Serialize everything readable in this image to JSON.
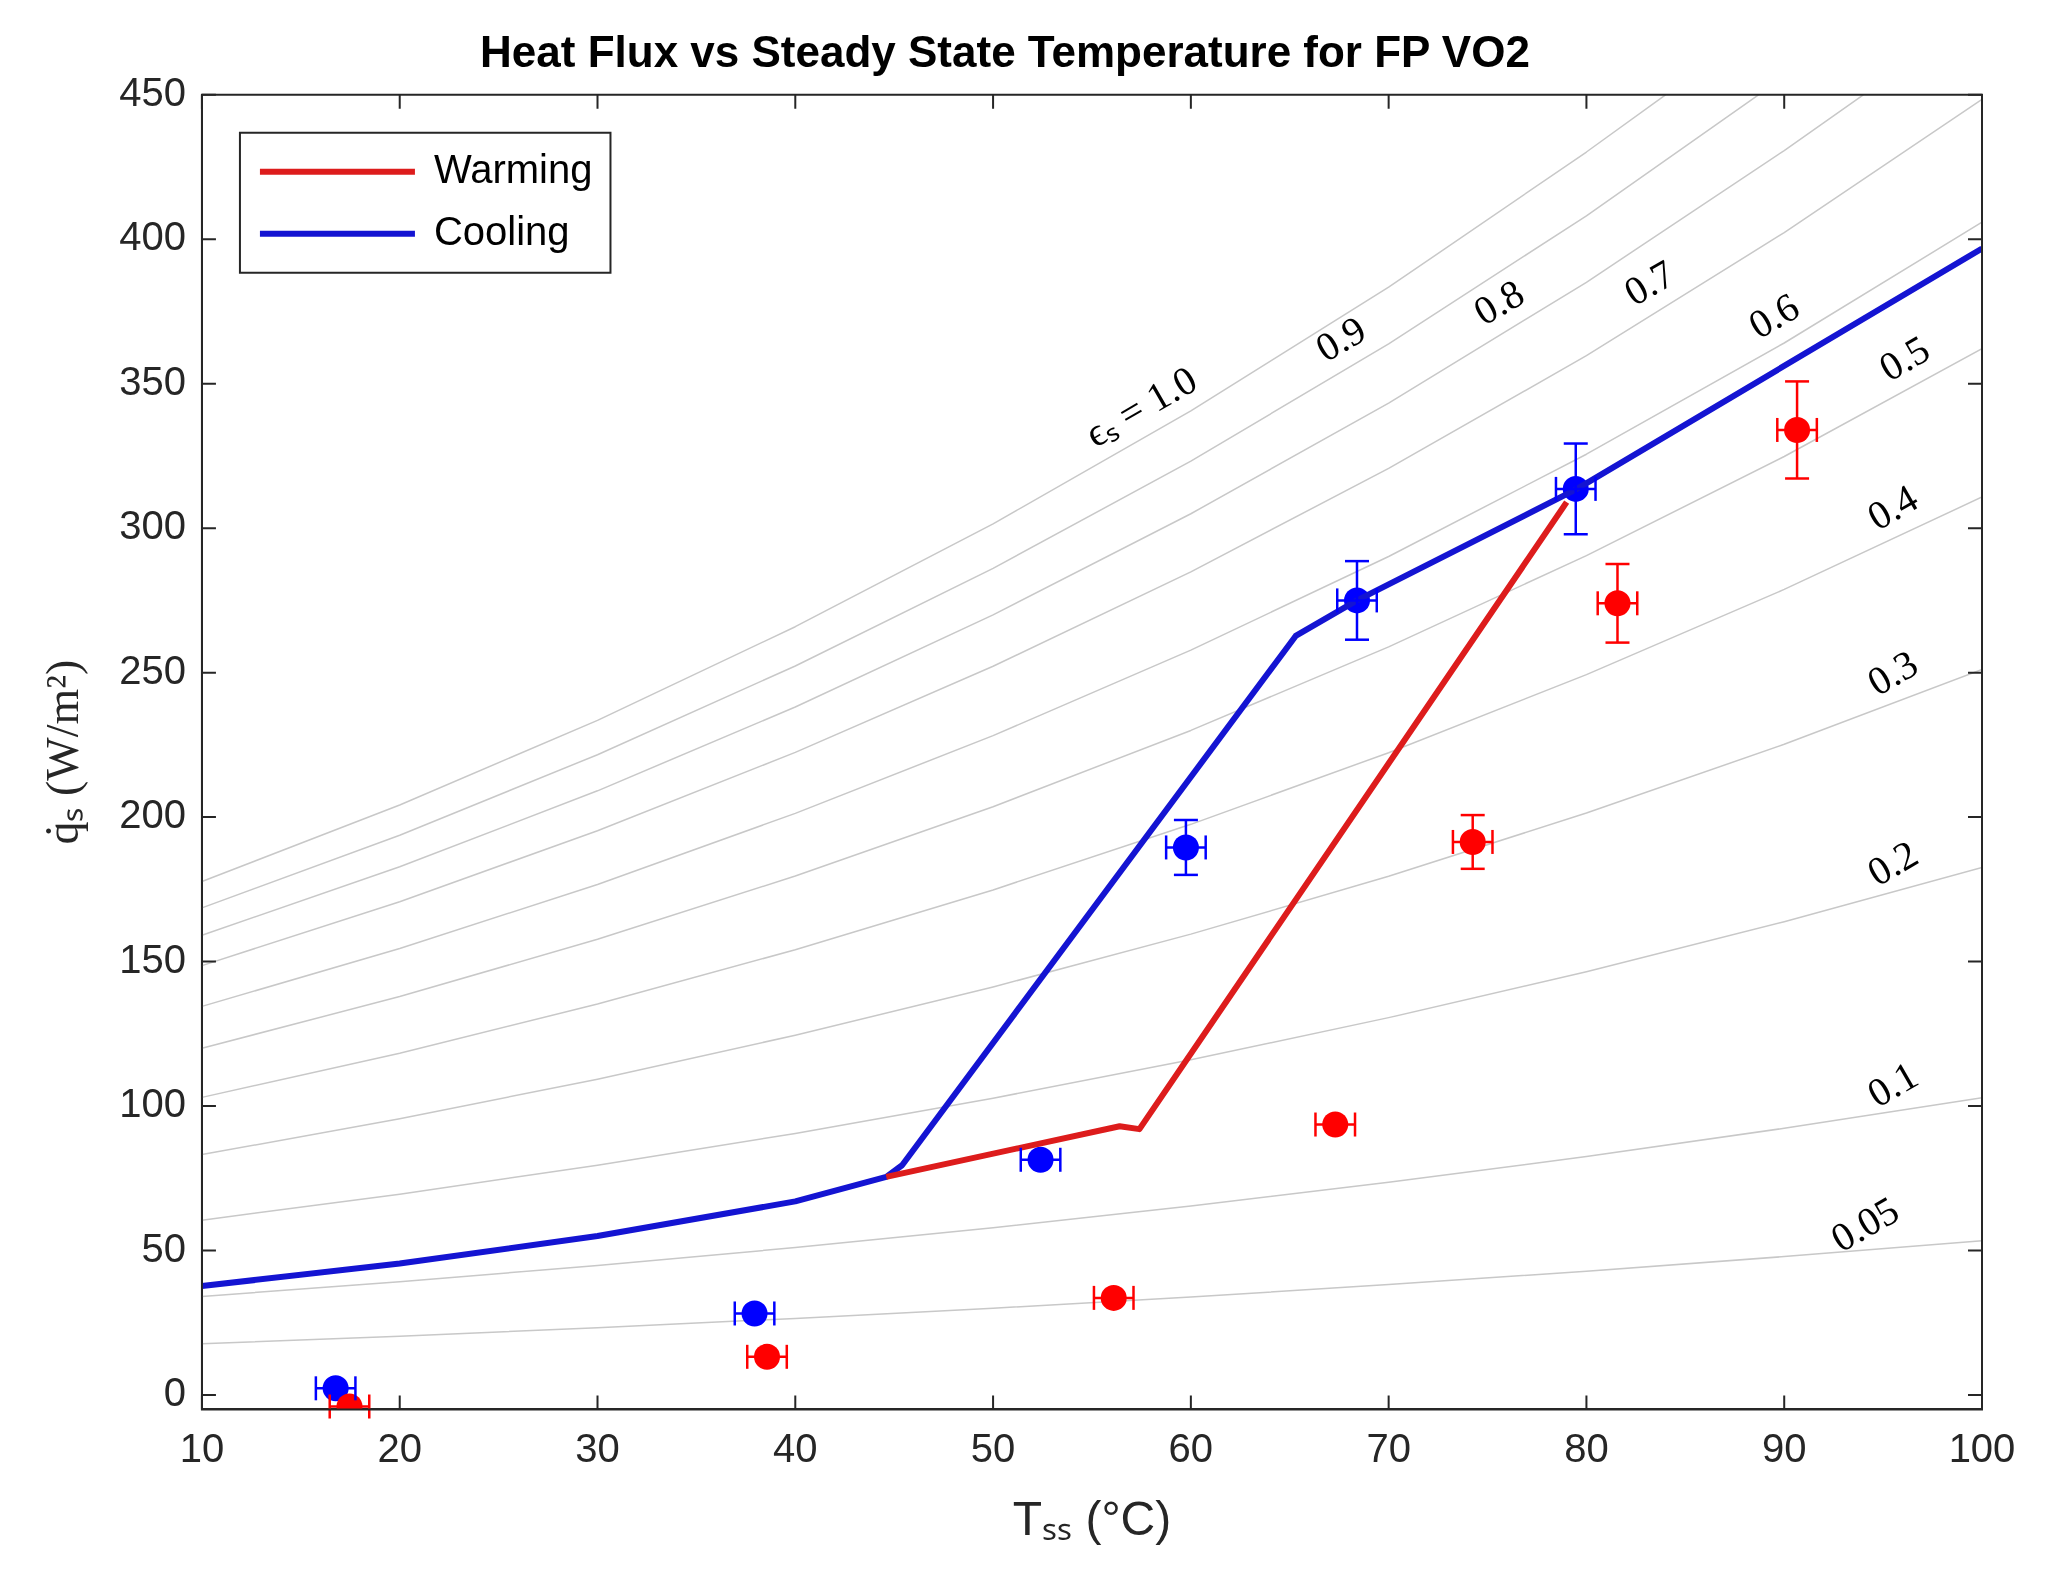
{
  "chart_data": {
    "type": "line",
    "title": "Heat Flux vs Steady State Temperature for FP VO2",
    "xlabel": "Tₛₛ (°C)",
    "ylabel": "q̇ₛ (W/m²)",
    "xlim": [
      10,
      100
    ],
    "ylim": [
      -5,
      450
    ],
    "xticks": [
      10,
      20,
      30,
      40,
      50,
      60,
      70,
      80,
      90,
      100
    ],
    "yticks": [
      0,
      50,
      100,
      150,
      200,
      250,
      300,
      350,
      400,
      450
    ],
    "grid": false,
    "legend": "top left",
    "annotations": [
      {
        "text": "ϵₛ = 1.0",
        "x": 58.2,
        "y": 333.5
      },
      {
        "text": "0.9",
        "x": 68.3,
        "y": 356.9
      },
      {
        "text": "0.8",
        "x": 76.3,
        "y": 369.6
      },
      {
        "text": "0.7",
        "x": 83.9,
        "y": 376.3
      },
      {
        "text": "0.6",
        "x": 90.2,
        "y": 364.9
      },
      {
        "text": "0.5",
        "x": 96.8,
        "y": 350.2
      },
      {
        "text": "0.4",
        "x": 96.2,
        "y": 298.6
      },
      {
        "text": "0.3",
        "x": 96.2,
        "y": 241.3
      },
      {
        "text": "0.2",
        "x": 96.2,
        "y": 175.5
      },
      {
        "text": "0.1",
        "x": 96.2,
        "y": 98.9
      },
      {
        "text": "0.05",
        "x": 94.8,
        "y": 50.5
      }
    ],
    "series": [
      {
        "color": "#c8c8c8",
        "x": [
          10,
          20,
          30,
          40,
          50,
          60,
          70,
          80,
          84
        ],
        "values": [
          177.7,
          204.2,
          233.5,
          265.9,
          301.5,
          340.6,
          383.4,
          430.2,
          450
        ]
      },
      {
        "color": "#c8c8c8",
        "x": [
          10,
          20,
          30,
          40,
          50,
          60,
          70,
          80,
          88.7
        ],
        "values": [
          168.6,
          193.7,
          221.6,
          252.3,
          286.1,
          323.2,
          363.8,
          408.1,
          450
        ]
      },
      {
        "color": "#c8c8c8",
        "x": [
          10,
          20,
          30,
          40,
          50,
          60,
          70,
          80,
          90,
          94
        ],
        "values": [
          159.1,
          182.8,
          209.1,
          238.1,
          270.0,
          305.0,
          343.3,
          385.1,
          430.7,
          450
        ]
      },
      {
        "color": "#c8c8c8",
        "x": [
          10,
          20,
          30,
          40,
          50,
          60,
          70,
          80,
          90,
          100
        ],
        "values": [
          148.6,
          170.7,
          195.3,
          222.4,
          252.2,
          284.9,
          320.7,
          359.7,
          402.3,
          448.4
        ]
      },
      {
        "color": "#c8c8c8",
        "x": [
          10,
          20,
          30,
          40,
          50,
          60,
          70,
          80,
          90,
          100
        ],
        "values": [
          134.5,
          154.5,
          176.7,
          201.3,
          228.2,
          257.8,
          290.2,
          325.6,
          364.1,
          405.9
        ]
      },
      {
        "color": "#c8c8c8",
        "x": [
          10,
          20,
          30,
          40,
          50,
          60,
          70,
          80,
          90,
          100
        ],
        "values": [
          120,
          137.9,
          157.7,
          179.6,
          203.6,
          230.0,
          258.9,
          290.5,
          324.8,
          362.1
        ]
      },
      {
        "color": "#c8c8c8",
        "x": [
          10,
          20,
          30,
          40,
          50,
          60,
          70,
          80,
          90,
          100
        ],
        "values": [
          103,
          118.3,
          135.3,
          154.1,
          174.8,
          197.5,
          222.3,
          249.3,
          278.8,
          310.8
        ]
      },
      {
        "color": "#c8c8c8",
        "x": [
          10,
          20,
          30,
          40,
          50,
          60,
          70,
          80,
          90,
          100
        ],
        "values": [
          83.2,
          95.6,
          109.3,
          124.5,
          141.2,
          159.5,
          179.5,
          201.4,
          225.2,
          251.1
        ]
      },
      {
        "color": "#c8c8c8",
        "x": [
          10,
          20,
          30,
          40,
          50,
          60,
          70,
          80,
          90,
          100
        ],
        "values": [
          60.5,
          69.5,
          79.5,
          90.5,
          102.7,
          116.0,
          130.6,
          146.5,
          163.8,
          182.6
        ]
      },
      {
        "color": "#c8c8c8",
        "x": [
          10,
          20,
          30,
          40,
          50,
          60,
          70,
          80,
          90,
          100
        ],
        "values": [
          34.1,
          39.2,
          44.8,
          51.0,
          57.9,
          65.4,
          73.6,
          82.5,
          92.3,
          102.9
        ]
      },
      {
        "color": "#c8c8c8",
        "x": [
          10,
          20,
          30,
          40,
          50,
          60,
          70,
          80,
          90,
          100
        ],
        "values": [
          17.7,
          20.3,
          23.3,
          26.5,
          30.0,
          33.9,
          38.2,
          42.8,
          47.9,
          53.4
        ]
      },
      {
        "name": "Warming",
        "color": "#dd1c1c",
        "x": [
          44.6,
          56.4,
          57.4,
          79
        ],
        "values": [
          75.5,
          93,
          92,
          309
        ]
      },
      {
        "name": "Cooling",
        "color": "#1414d2",
        "x": [
          10,
          20,
          30,
          40,
          44.6,
          45.4,
          65.3,
          68.4,
          79.5,
          100
        ],
        "values": [
          37.7,
          45.5,
          55,
          67,
          75.5,
          79.5,
          262.7,
          275,
          313.5,
          396.8
        ]
      },
      {
        "type": "scatter",
        "marker": "circle",
        "color": "#ff0000",
        "x": [
          17.46,
          38.57,
          56.1,
          67.3,
          74.25,
          81.57,
          90.65
        ],
        "values": [
          -4,
          13.2,
          33.6,
          93.6,
          191.4,
          274,
          334
        ],
        "errors": [
          null,
          null,
          null,
          null,
          9.3,
          13.6,
          16.8
        ],
        "xerrors": [
          1,
          1,
          1,
          1,
          1,
          1,
          1
        ]
      },
      {
        "type": "scatter",
        "marker": "circle",
        "color": "#0000ff",
        "x": [
          16.76,
          37.94,
          52.4,
          59.75,
          68.4,
          79.46
        ],
        "values": [
          2.3,
          28.2,
          81.4,
          189.5,
          275,
          313.6
        ],
        "errors": [
          null,
          null,
          null,
          9.5,
          13.6,
          15.7
        ],
        "xerrors": [
          1,
          1,
          1,
          1,
          1,
          1
        ]
      }
    ]
  }
}
